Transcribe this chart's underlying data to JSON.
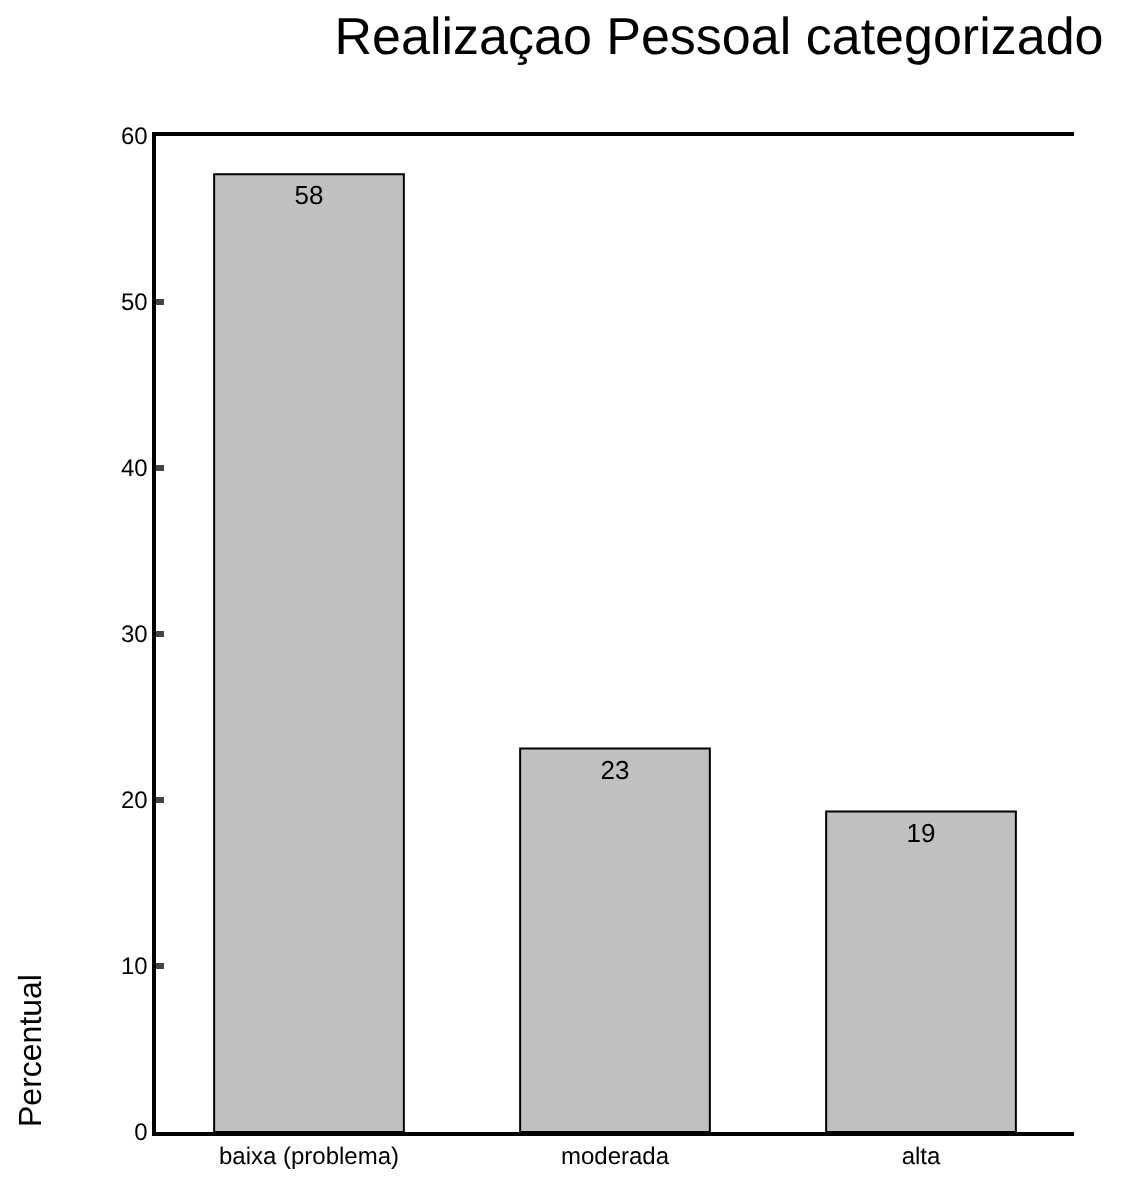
{
  "chart_data": {
    "type": "bar",
    "title": "Realizaçao Pessoal categorizado",
    "ylabel": "Percentual",
    "categories": [
      "baixa (problema)",
      "moderada",
      "alta"
    ],
    "values": [
      57.7,
      23.1,
      19.3
    ],
    "value_labels": [
      "58",
      "23",
      "19"
    ],
    "color": "#c0c0c0",
    "ylim": [
      0,
      60
    ],
    "yticks": [
      0,
      10,
      20,
      30,
      40,
      50,
      60
    ]
  }
}
